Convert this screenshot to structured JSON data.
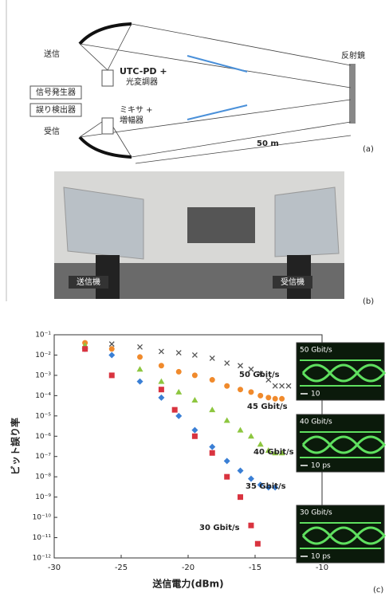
{
  "diagram": {
    "tx": "送信",
    "rx": "受信",
    "utc": "UTC-PD +",
    "modulator": "光変調器",
    "siggen": "信号発生器",
    "errdet": "誤り検出器",
    "mixer": "ミキサ +",
    "amp": "増幅器",
    "mirror": "反射鏡",
    "distance": "50 m",
    "panel": "(a)"
  },
  "photo": {
    "tx": "送信機",
    "rx": "受信機",
    "panel": "(b)"
  },
  "chart_data": {
    "type": "scatter",
    "x_label": "送信電力(dBm)",
    "y_label": "ビット誤り率",
    "panel": "(c)",
    "xlim": [
      -30,
      -10
    ],
    "xticks": [
      -30,
      -25,
      -20,
      -15,
      -10
    ],
    "ylim": [
      1e-12,
      0.1
    ],
    "log_y": true,
    "yticks": [
      {
        "value": 0.1,
        "label": "10⁻¹"
      },
      {
        "value": 0.01,
        "label": "10⁻²"
      },
      {
        "value": 0.001,
        "label": "10⁻³"
      },
      {
        "value": 0.0001,
        "label": "10⁻⁴"
      },
      {
        "value": 1e-05,
        "label": "10⁻⁵"
      },
      {
        "value": 1e-06,
        "label": "10⁻⁶"
      },
      {
        "value": 1e-07,
        "label": "10⁻⁷"
      },
      {
        "value": 1e-08,
        "label": "10⁻⁸"
      },
      {
        "value": 1e-09,
        "label": "10⁻⁹"
      },
      {
        "value": 1e-10,
        "label": "10⁻¹⁰"
      },
      {
        "value": 1e-11,
        "label": "10⁻¹¹"
      },
      {
        "value": 1e-12,
        "label": "10⁻¹²"
      }
    ],
    "series": [
      {
        "name": "50 Gbit/s",
        "color": "#555555",
        "marker": "x",
        "x": [
          -25.7,
          -23.6,
          -22,
          -20.7,
          -19.5,
          -18.2,
          -17.1,
          -16.1,
          -15.3,
          -14.6,
          -14,
          -13.5,
          -13,
          -12.5
        ],
        "values": [
          0.035,
          0.025,
          0.015,
          0.013,
          0.01,
          0.007,
          0.004,
          0.003,
          0.002,
          0.0012,
          0.0006,
          0.0003,
          0.0003,
          0.0003
        ]
      },
      {
        "name": "45 Gbit/s",
        "color": "#f08a2c",
        "marker": "circle",
        "x": [
          -27.7,
          -25.7,
          -23.6,
          -22,
          -20.7,
          -19.5,
          -18.2,
          -17.1,
          -16.1,
          -15.3,
          -14.6,
          -14,
          -13.5,
          -13
        ],
        "values": [
          0.04,
          0.02,
          0.008,
          0.003,
          0.0015,
          0.001,
          0.0006,
          0.0003,
          0.0002,
          0.00015,
          0.0001,
          8e-05,
          7e-05,
          7e-05
        ]
      },
      {
        "name": "40 Gbit/s",
        "color": "#8dc63f",
        "marker": "triangle",
        "x": [
          -27.7,
          -23.6,
          -22,
          -20.7,
          -19.5,
          -18.2,
          -17.1,
          -16.1,
          -15.3,
          -14.6,
          -14,
          -13.5,
          -13
        ],
        "values": [
          0.03,
          0.002,
          0.0005,
          0.00015,
          6e-05,
          2e-05,
          6e-06,
          2e-06,
          1e-06,
          4e-07,
          2e-07,
          1.5e-07,
          1.5e-07
        ]
      },
      {
        "name": "35 Gbit/s",
        "color": "#3a7fd5",
        "marker": "diamond",
        "x": [
          -27.7,
          -25.7,
          -23.6,
          -22,
          -20.7,
          -19.5,
          -18.2,
          -17.1,
          -16.1,
          -15.3,
          -14.6,
          -14,
          -13.5
        ],
        "values": [
          0.02,
          0.01,
          0.0005,
          8e-05,
          1e-05,
          2e-06,
          3e-07,
          6e-08,
          2e-08,
          8e-09,
          4e-09,
          3e-09,
          3e-09
        ]
      },
      {
        "name": "30 Gbit/s",
        "color": "#d9333f",
        "marker": "square",
        "x": [
          -27.7,
          -25.7,
          -22,
          -21,
          -19.5,
          -18.2,
          -17.1,
          -16.1,
          -15.3,
          -14.8
        ],
        "values": [
          0.02,
          0.001,
          0.0002,
          2e-05,
          1e-06,
          1.5e-07,
          1e-08,
          1e-09,
          4e-11,
          5e-12
        ]
      }
    ],
    "insets": [
      {
        "rate": "50 Gbit/s",
        "scale": "10"
      },
      {
        "rate": "40 Gbit/s",
        "scale": "10 ps"
      },
      {
        "rate": "30 Gbit/s",
        "scale": "10 ps"
      }
    ]
  }
}
